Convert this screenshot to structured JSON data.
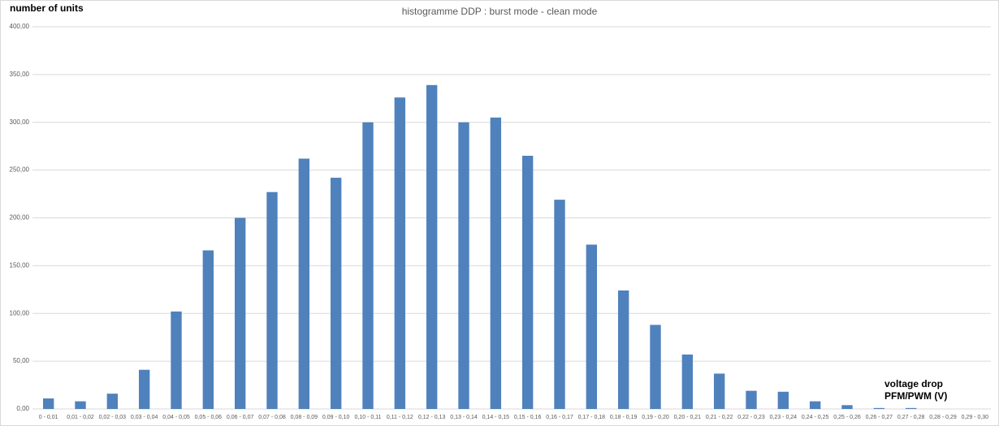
{
  "chart_data": {
    "type": "bar",
    "title": "histogramme DDP : burst mode - clean mode",
    "ylabel": "number of units",
    "xlabel": "voltage drop PFM/PWM (V)",
    "categories": [
      "0 - 0,01",
      "0,01 - 0,02",
      "0,02 - 0,03",
      "0,03 - 0,04",
      "0,04 - 0,05",
      "0,05 - 0,06",
      "0,06 - 0,07",
      "0,07 - 0,08",
      "0,08 - 0,09",
      "0,09 - 0,10",
      "0,10 - 0,11",
      "0,11 - 0,12",
      "0,12 - 0,13",
      "0,13 - 0,14",
      "0,14 - 0,15",
      "0,15 - 0,16",
      "0,16 - 0,17",
      "0,17 - 0,18",
      "0,18 - 0,19",
      "0,19 - 0,20",
      "0,20 - 0,21",
      "0,21 - 0,22",
      "0,22 - 0,23",
      "0,23 - 0,24",
      "0,24 - 0,25",
      "0,25 - 0,26",
      "0,26 - 0,27",
      "0,27 - 0,28",
      "0,28 - 0,29",
      "0,29 - 0,30"
    ],
    "values": [
      11,
      8,
      16,
      41,
      102,
      166,
      200,
      227,
      262,
      242,
      300,
      326,
      339,
      300,
      305,
      265,
      219,
      172,
      124,
      88,
      57,
      37,
      19,
      18,
      8,
      4,
      1,
      1,
      0,
      0
    ],
    "color": "#4f81bd",
    "ylim": [
      0,
      400
    ],
    "yticks": [
      {
        "value": 0,
        "label": "0,00"
      },
      {
        "value": 50,
        "label": "50,00"
      },
      {
        "value": 100,
        "label": "100,00"
      },
      {
        "value": 150,
        "label": "150,00"
      },
      {
        "value": 200,
        "label": "200,00"
      },
      {
        "value": 250,
        "label": "250,00"
      },
      {
        "value": 300,
        "label": "300,00"
      },
      {
        "value": 350,
        "label": "350,00"
      },
      {
        "value": 400,
        "label": "400,00"
      }
    ],
    "grid": true
  }
}
